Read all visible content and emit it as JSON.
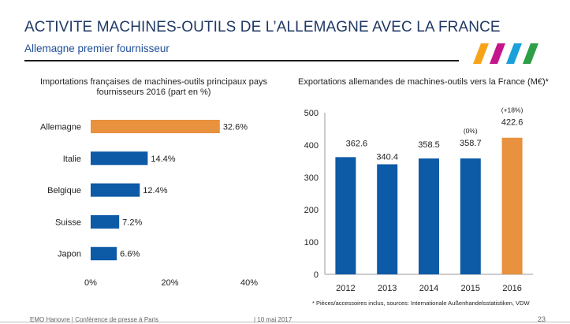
{
  "header": {
    "title": "ACTIVITE MACHINES-OUTILS DE L’ALLEMAGNE AVEC LA FRANCE",
    "subtitle": "Allemagne premier fournisseur"
  },
  "colors": {
    "blue": "#0d5aa7",
    "orange": "#e8913e",
    "logo_stripes": [
      "#f6a31a",
      "#c5158b",
      "#1aa1d9",
      "#2e9e47"
    ]
  },
  "chart_data": [
    {
      "type": "bar",
      "orientation": "horizontal",
      "title": "Importations françaises de machines-outils principaux pays fournisseurs 2016 (part en %)",
      "categories": [
        "Allemagne",
        "Italie",
        "Belgique",
        "Suisse",
        "Japon"
      ],
      "values": [
        32.6,
        14.4,
        12.4,
        7.2,
        6.6
      ],
      "data_labels": [
        "32.6%",
        "14.4%",
        "12.4%",
        "7.2%",
        "6.6%"
      ],
      "highlight": [
        true,
        false,
        false,
        false,
        false
      ],
      "xlim": [
        0,
        40
      ],
      "xticks": [
        0,
        20,
        40
      ],
      "xtick_labels": [
        "0%",
        "20%",
        "40%"
      ],
      "grid": false
    },
    {
      "type": "bar",
      "orientation": "vertical",
      "title": "Exportations allemandes de machines-outils vers la France (M€)*",
      "categories": [
        "2012",
        "2013",
        "2014",
        "2015",
        "2016"
      ],
      "values": [
        362.6,
        340.4,
        358.5,
        358.7,
        422.6
      ],
      "data_labels": [
        "362.6",
        "340.4",
        "358.5",
        "358.7",
        "422.6"
      ],
      "annotations": [
        "",
        "",
        "",
        "(0%)",
        "(+18%)"
      ],
      "highlight": [
        false,
        false,
        false,
        false,
        true
      ],
      "ylim": [
        0,
        500
      ],
      "yticks": [
        0,
        100,
        200,
        300,
        400,
        500
      ],
      "grid": false
    }
  ],
  "footnote": "* Pièces/accessoires inclus, sources: Internationale Außenhandelsstatistiken, VDW",
  "footer": {
    "event": "EMO Hanovre | Conférence de presse à Paris",
    "date": "| 10 mai 2017",
    "page": "23"
  }
}
